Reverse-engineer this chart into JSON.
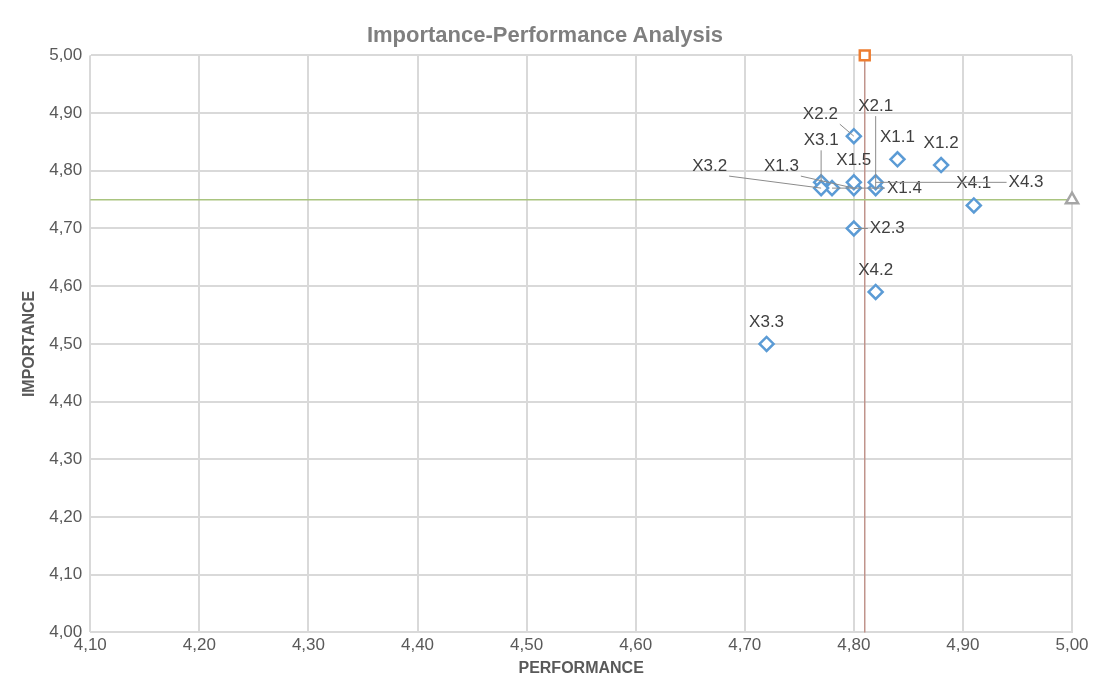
{
  "chart_data": {
    "type": "scatter",
    "title": "Importance-Performance Analysis",
    "xlabel": "PERFORMANCE",
    "ylabel": "IMPORTANCE",
    "series": [
      {
        "type": "scatter",
        "color": "#5b9bd5",
        "marker": "diamond",
        "x": [
          4.84,
          4.88,
          4.8,
          4.78,
          4.8,
          4.82,
          4.8,
          4.8,
          4.77,
          4.77,
          4.72,
          4.91,
          4.82,
          4.82
        ],
        "values": [
          4.82,
          4.81,
          4.77,
          4.77,
          4.78,
          4.77,
          4.86,
          4.7,
          4.78,
          4.77,
          4.5,
          4.74,
          4.59,
          4.78
        ]
      },
      {
        "type": "scatter",
        "color": "#ed7d31",
        "marker": "square",
        "x": [
          4.81
        ],
        "values": [
          5.0
        ]
      },
      {
        "type": "scatter",
        "color": "#a5a5a5",
        "marker": "triangle",
        "x": [
          5.0
        ],
        "values": [
          4.75
        ]
      }
    ],
    "ref_lines": [
      {
        "axis": "x",
        "value": 4.81,
        "color": "#c0948c"
      },
      {
        "axis": "y",
        "value": 4.75,
        "color": "#a9c47f"
      }
    ],
    "annotations": [
      {
        "text": "X1.1",
        "x": 4.84,
        "y": 4.82
      },
      {
        "text": "X1.2",
        "x": 4.88,
        "y": 4.81
      },
      {
        "text": "X1.3",
        "x": 4.8,
        "y": 4.77
      },
      {
        "text": "X1.4",
        "x": 4.78,
        "y": 4.77
      },
      {
        "text": "X1.5",
        "x": 4.8,
        "y": 4.78
      },
      {
        "text": "X2.1",
        "x": 4.82,
        "y": 4.77
      },
      {
        "text": "X2.2",
        "x": 4.8,
        "y": 4.86
      },
      {
        "text": "X2.3",
        "x": 4.8,
        "y": 4.7
      },
      {
        "text": "X3.1",
        "x": 4.77,
        "y": 4.78
      },
      {
        "text": "X3.2",
        "x": 4.77,
        "y": 4.77
      },
      {
        "text": "X3.3",
        "x": 4.72,
        "y": 4.5
      },
      {
        "text": "X4.1",
        "x": 4.91,
        "y": 4.74
      },
      {
        "text": "X4.2",
        "x": 4.82,
        "y": 4.59
      },
      {
        "text": "X4.3",
        "x": 4.82,
        "y": 4.78
      }
    ],
    "xlim": [
      4.1,
      5.0
    ],
    "xticks": [
      {
        "value": 4.1,
        "label": "4,10"
      },
      {
        "value": 4.2,
        "label": "4,20"
      },
      {
        "value": 4.3,
        "label": "4,30"
      },
      {
        "value": 4.4,
        "label": "4,40"
      },
      {
        "value": 4.5,
        "label": "4,50"
      },
      {
        "value": 4.6,
        "label": "4,60"
      },
      {
        "value": 4.7,
        "label": "4,70"
      },
      {
        "value": 4.8,
        "label": "4,80"
      },
      {
        "value": 4.9,
        "label": "4,90"
      },
      {
        "value": 5.0,
        "label": "5,00"
      }
    ],
    "ylim": [
      4.0,
      5.0
    ],
    "yticks": [
      {
        "value": 4.0,
        "label": "4,00"
      },
      {
        "value": 4.1,
        "label": "4,10"
      },
      {
        "value": 4.2,
        "label": "4,20"
      },
      {
        "value": 4.3,
        "label": "4,30"
      },
      {
        "value": 4.4,
        "label": "4,40"
      },
      {
        "value": 4.5,
        "label": "4,50"
      },
      {
        "value": 4.6,
        "label": "4,60"
      },
      {
        "value": 4.7,
        "label": "4,70"
      },
      {
        "value": 4.8,
        "label": "4,80"
      },
      {
        "value": 4.9,
        "label": "4,90"
      },
      {
        "value": 5.0,
        "label": "5,00"
      }
    ],
    "grid": true,
    "legend": false
  }
}
